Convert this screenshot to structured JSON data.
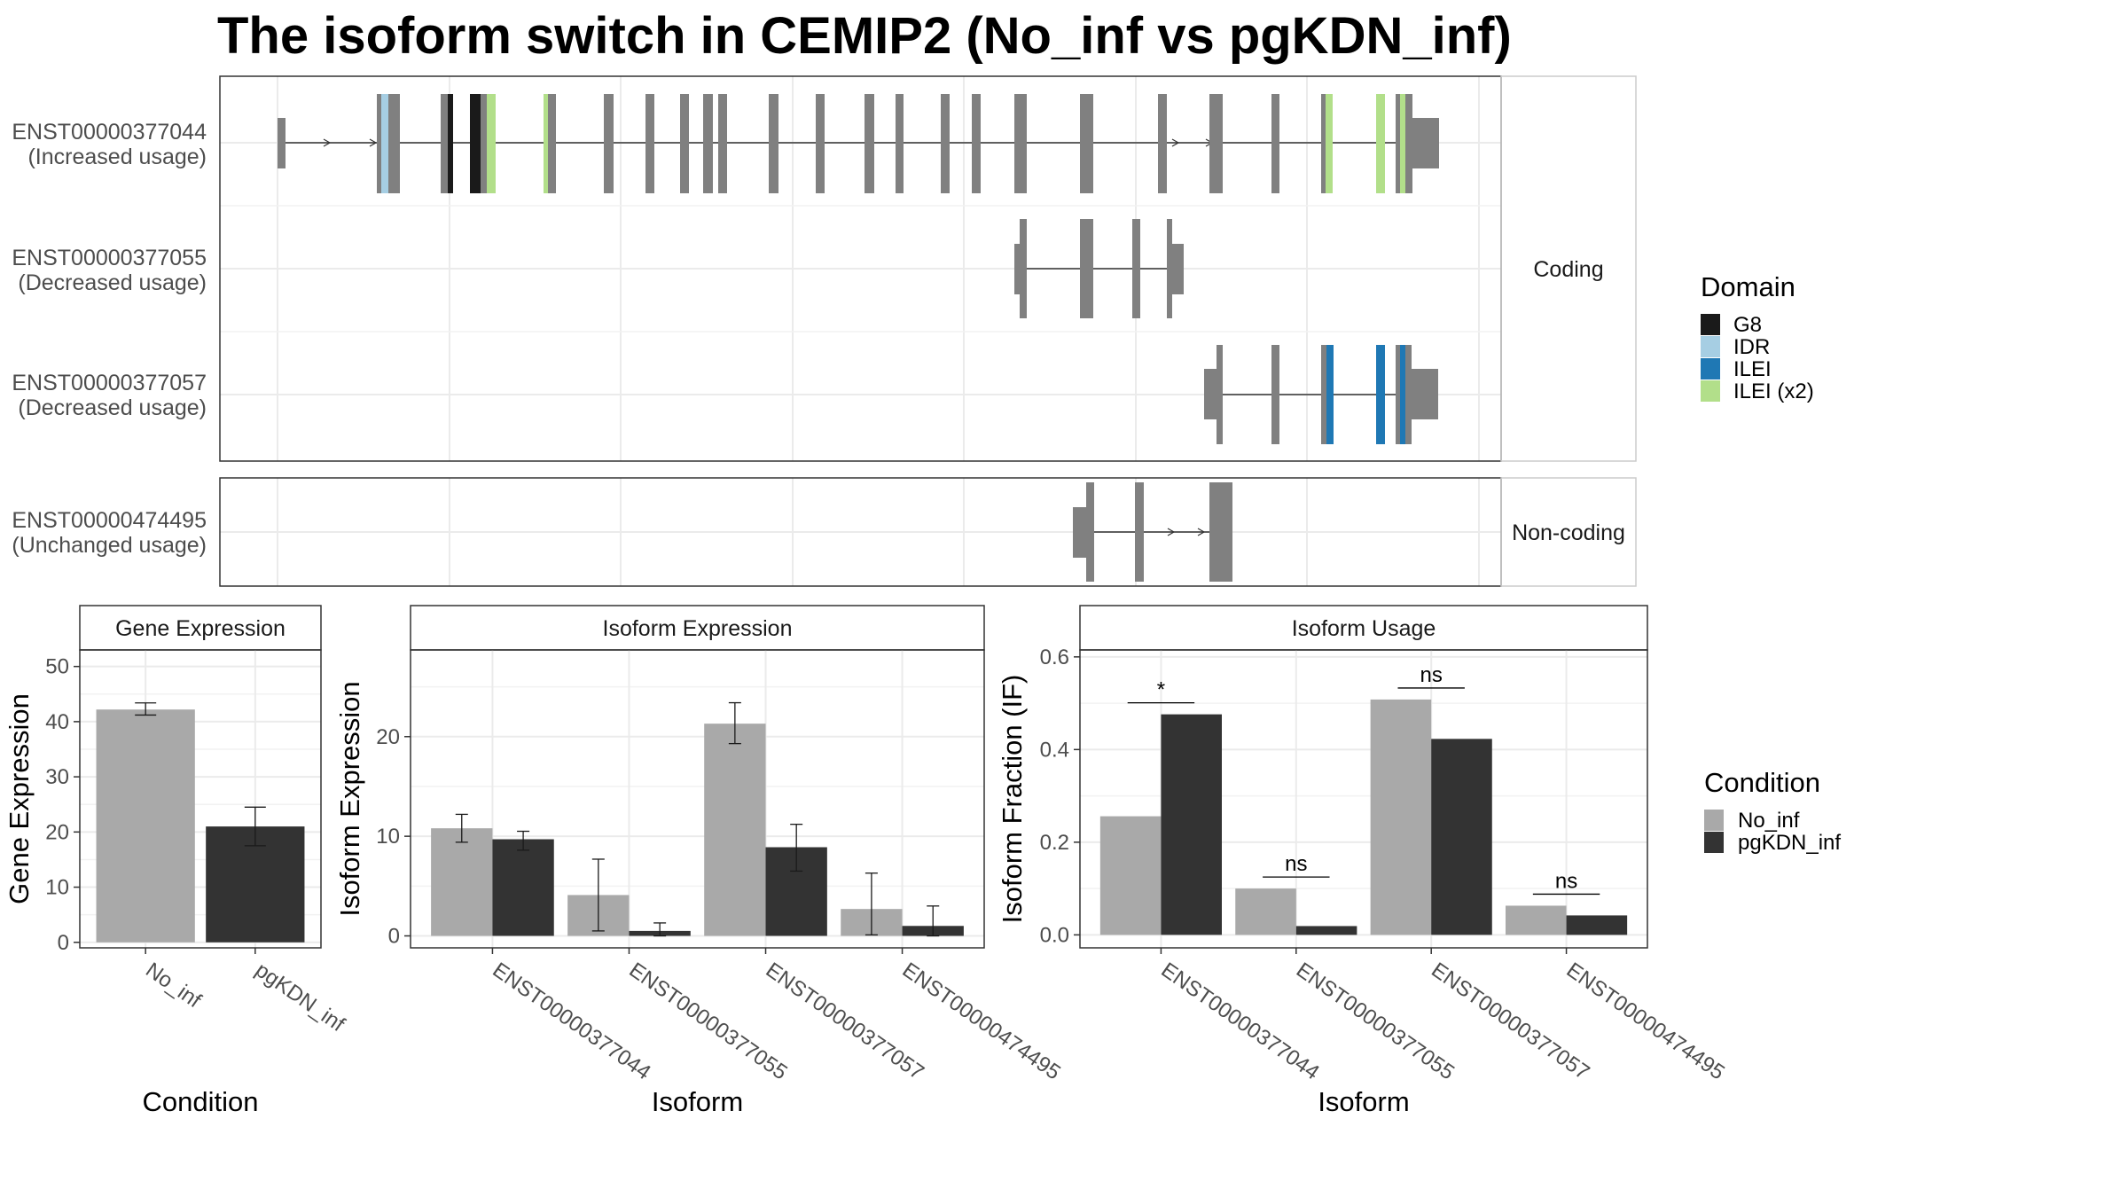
{
  "title": "The isoform switch in CEMIP2 (No_inf vs pgKDN_inf)",
  "transcripts": {
    "facets": [
      {
        "label": "Coding",
        "rows": [
          {
            "id": "ENST00000377044",
            "usage": "(Increased usage)"
          },
          {
            "id": "ENST00000377055",
            "usage": "(Decreased usage)"
          },
          {
            "id": "ENST00000377057",
            "usage": "(Decreased usage)"
          }
        ]
      },
      {
        "label": "Non-coding",
        "rows": [
          {
            "id": "ENST00000474495",
            "usage": "(Unchanged usage)"
          }
        ]
      }
    ]
  },
  "legend_domain": {
    "title": "Domain",
    "items": [
      {
        "label": "G8",
        "color": "#1a1a1a"
      },
      {
        "label": "IDR",
        "color": "#a6cee3"
      },
      {
        "label": "ILEI",
        "color": "#1f78b4"
      },
      {
        "label": "ILEI (x2)",
        "color": "#b2df8a"
      }
    ]
  },
  "legend_condition": {
    "title": "Condition",
    "items": [
      {
        "label": "No_inf",
        "color": "#a9a9a9"
      },
      {
        "label": "pgKDN_inf",
        "color": "#333333"
      }
    ]
  },
  "chart_data": [
    {
      "type": "bar",
      "panel": "Gene Expression",
      "xlabel": "Condition",
      "ylabel": "Gene Expression",
      "categories": [
        "No_inf",
        "pgKDN_inf"
      ],
      "values": [
        42.2,
        21.0
      ],
      "err_low": [
        41.2,
        17.5
      ],
      "err_high": [
        43.4,
        24.5
      ],
      "colors": [
        "#a9a9a9",
        "#333333"
      ],
      "ylim": [
        -1,
        53
      ],
      "yticks": [
        0,
        10,
        20,
        30,
        40,
        50
      ]
    },
    {
      "type": "bar",
      "panel": "Isoform Expression",
      "xlabel": "Isoform",
      "ylabel": "Isoform Expression",
      "categories": [
        "ENST00000377044",
        "ENST00000377055",
        "ENST00000377057",
        "ENST00000474495"
      ],
      "series": [
        {
          "name": "No_inf",
          "values": [
            10.8,
            4.1,
            21.3,
            2.7
          ],
          "err_low": [
            9.4,
            0.5,
            19.3,
            0.1
          ],
          "err_high": [
            12.2,
            7.7,
            23.4,
            6.3
          ]
        },
        {
          "name": "pgKDN_inf",
          "values": [
            9.7,
            0.5,
            8.9,
            1.0
          ],
          "err_low": [
            8.6,
            0.0,
            6.5,
            0.0
          ],
          "err_high": [
            10.5,
            1.3,
            11.2,
            3.0
          ]
        }
      ],
      "ylim": [
        -1.2,
        28.7
      ],
      "yticks": [
        0,
        10,
        20
      ]
    },
    {
      "type": "bar",
      "panel": "Isoform Usage",
      "xlabel": "Isoform",
      "ylabel": "Isoform Fraction (IF)",
      "categories": [
        "ENST00000377044",
        "ENST00000377055",
        "ENST00000377057",
        "ENST00000474495"
      ],
      "series": [
        {
          "name": "No_inf",
          "values": [
            0.256,
            0.1,
            0.508,
            0.063
          ]
        },
        {
          "name": "pgKDN_inf",
          "values": [
            0.476,
            0.019,
            0.423,
            0.042
          ]
        }
      ],
      "significance": [
        "*",
        "ns",
        "ns",
        "ns"
      ],
      "ylim": [
        -0.028,
        0.615
      ],
      "yticks": [
        0.0,
        0.2,
        0.4,
        0.6
      ]
    }
  ]
}
